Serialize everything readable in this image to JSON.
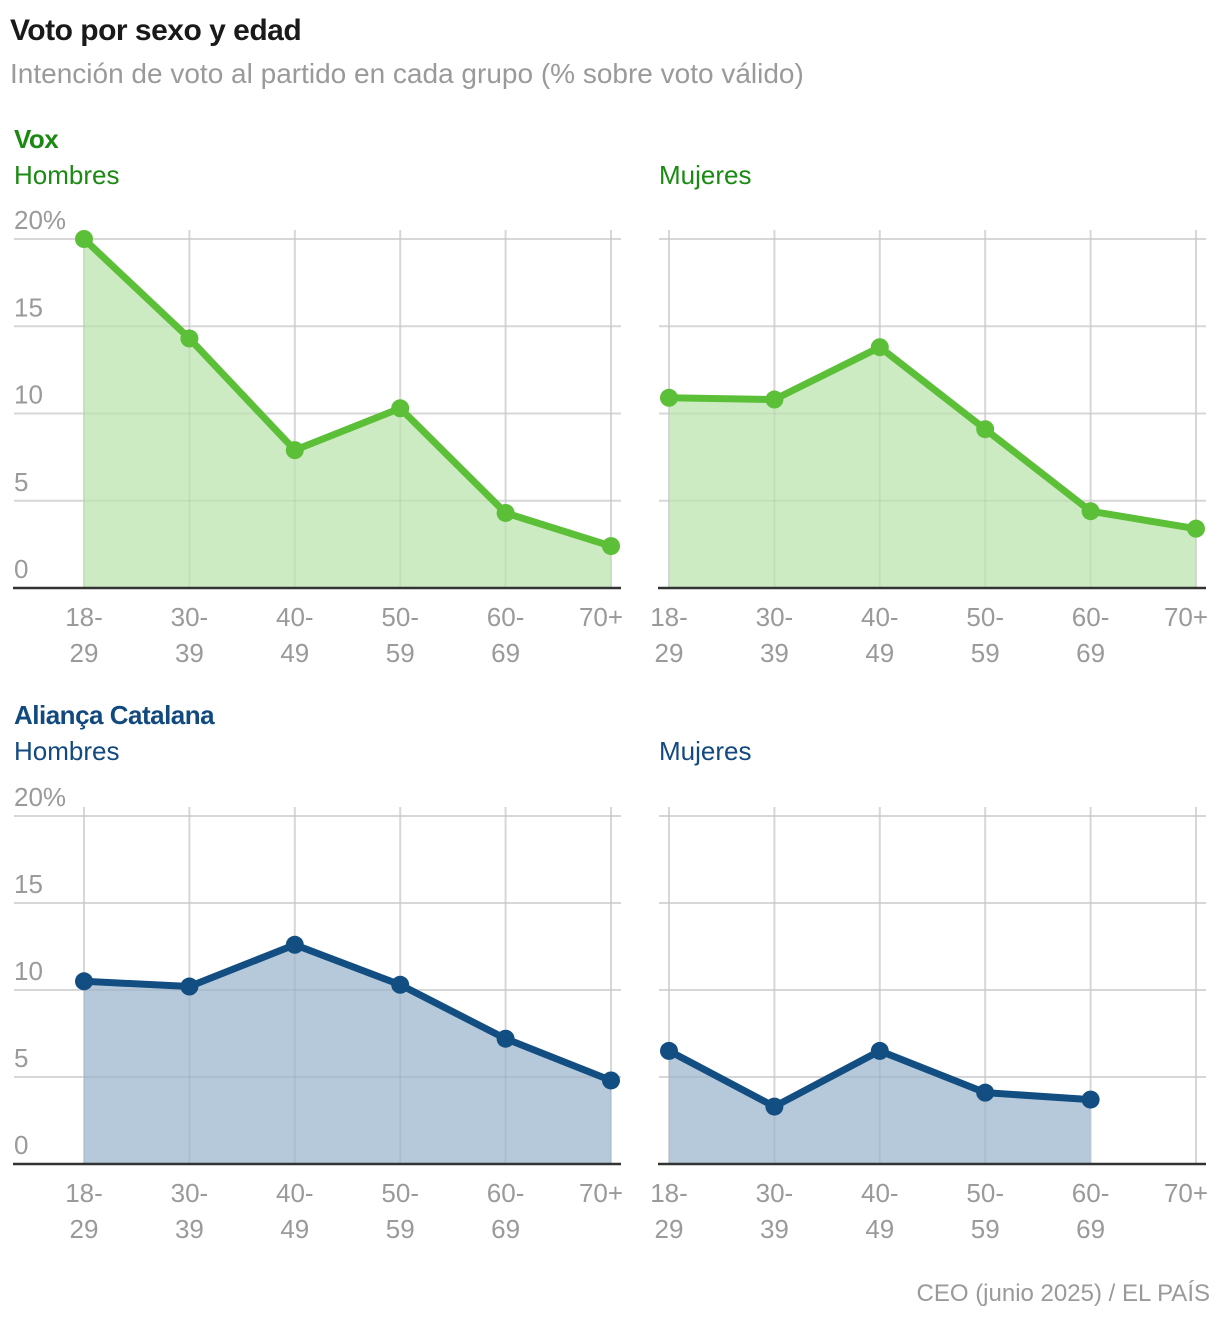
{
  "header": {
    "title": "Voto por sexo y edad",
    "subtitle": "Intención de voto al partido en cada grupo (% sobre voto válido)"
  },
  "source": "CEO (junio 2025) / EL PAÍS",
  "colors": {
    "vox_title": "#1a8a12",
    "vox_line": "#5cbf38",
    "vox_fill": "#cdebc3",
    "ac_title": "#124a80",
    "ac_line": "#124e82",
    "ac_fill": "#b6c9da",
    "tick_label": "#9a9a9a",
    "grid": "#e3e3e3",
    "axis": "#333333"
  },
  "chart_data": [
    {
      "type": "area",
      "party": "Vox",
      "panel": "Hombres",
      "categories": [
        "18-29",
        "30-39",
        "40-49",
        "50-59",
        "60-69",
        "70+"
      ],
      "values": [
        20.0,
        14.3,
        7.9,
        10.3,
        4.3,
        2.4
      ],
      "ylim": [
        0,
        20
      ],
      "yticks": [
        "0",
        "5",
        "10",
        "15",
        "20%"
      ],
      "grid": true
    },
    {
      "type": "area",
      "party": "Vox",
      "panel": "Mujeres",
      "categories": [
        "18-29",
        "30-39",
        "40-49",
        "50-59",
        "60-69",
        "70+"
      ],
      "values": [
        10.9,
        10.8,
        13.8,
        9.1,
        4.4,
        3.4
      ],
      "ylim": [
        0,
        20
      ],
      "yticks": [],
      "grid": true
    },
    {
      "type": "area",
      "party": "Aliança Catalana",
      "panel": "Hombres",
      "categories": [
        "18-29",
        "30-39",
        "40-49",
        "50-59",
        "60-69",
        "70+"
      ],
      "values": [
        10.5,
        10.2,
        12.6,
        10.3,
        7.2,
        4.8
      ],
      "ylim": [
        0,
        20
      ],
      "yticks": [
        "0",
        "5",
        "10",
        "15",
        "20%"
      ],
      "grid": true
    },
    {
      "type": "area",
      "party": "Aliança Catalana",
      "panel": "Mujeres",
      "categories": [
        "18-29",
        "30-39",
        "40-49",
        "50-59",
        "60-69",
        "70+"
      ],
      "values": [
        6.5,
        3.3,
        6.5,
        4.1,
        3.7,
        null
      ],
      "ylim": [
        0,
        20
      ],
      "yticks": [],
      "grid": true
    }
  ]
}
